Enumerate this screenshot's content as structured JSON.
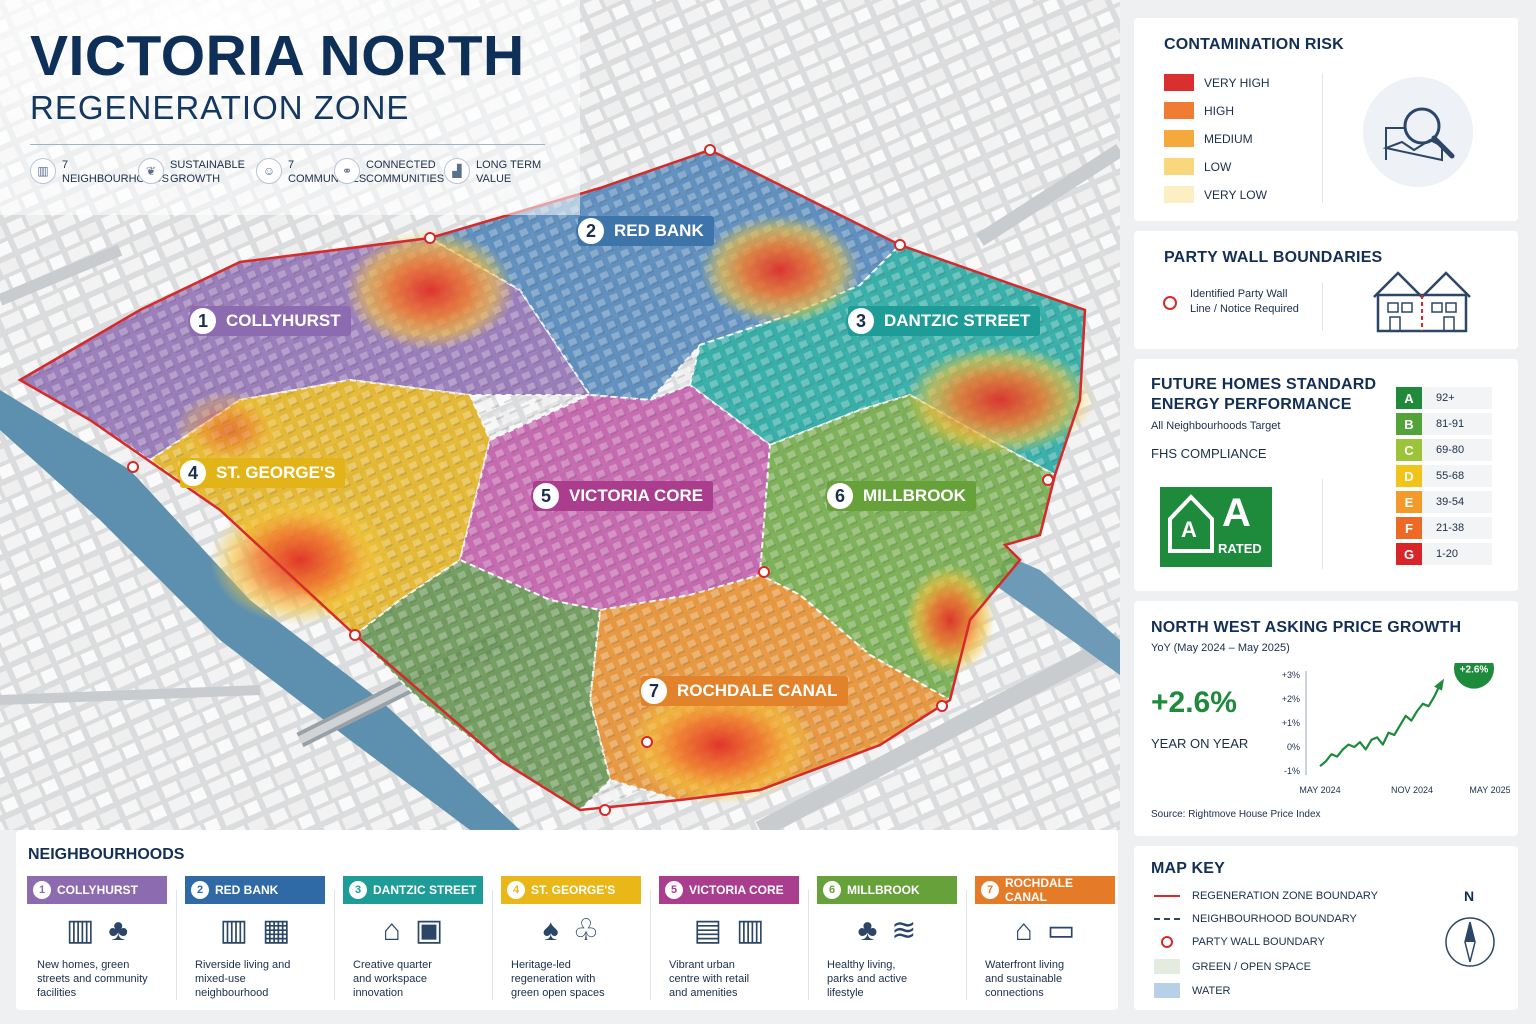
{
  "title": {
    "main": "VICTORIA NORTH",
    "sub": "REGENERATION ZONE"
  },
  "features": [
    {
      "icon": "buildings-icon",
      "line1": "7",
      "line2": "NEIGHBOURHOODS"
    },
    {
      "icon": "leaf-icon",
      "line1": "SUSTAINABLE",
      "line2": "GROWTH"
    },
    {
      "icon": "people-icon",
      "line1": "7",
      "line2": "COMMUNITIES"
    },
    {
      "icon": "network-icon",
      "line1": "CONNECTED",
      "line2": "COMMUNITIES"
    },
    {
      "icon": "growth-chart-icon",
      "line1": "LONG TERM",
      "line2": "VALUE"
    }
  ],
  "neighbourhood_labels": [
    {
      "num": "1",
      "name": "COLLYHURST",
      "color": "#8d6bb0"
    },
    {
      "num": "2",
      "name": "RED BANK",
      "color": "#3d74aa"
    },
    {
      "num": "3",
      "name": "DANTZIC STREET",
      "color": "#1e9c97"
    },
    {
      "num": "4",
      "name": "ST. GEORGE'S",
      "color": "#e3b419"
    },
    {
      "num": "5",
      "name": "VICTORIA CORE",
      "color": "#ab3d8e"
    },
    {
      "num": "6",
      "name": "MILLBROOK",
      "color": "#67a13a"
    },
    {
      "num": "7",
      "name": "ROCHDALE CANAL",
      "color": "#e2832b"
    }
  ],
  "contamination": {
    "title": "CONTAMINATION RISK",
    "levels": [
      {
        "label": "VERY HIGH",
        "color": "#d9302f"
      },
      {
        "label": "HIGH",
        "color": "#f07b32"
      },
      {
        "label": "MEDIUM",
        "color": "#f5a93c"
      },
      {
        "label": "LOW",
        "color": "#f9d77d"
      },
      {
        "label": "VERY LOW",
        "color": "#fcefc4"
      }
    ],
    "icon": "magnifier-terrain-icon"
  },
  "party_wall": {
    "title": "PARTY WALL BOUNDARIES",
    "line1": "Identified Party Wall",
    "line2": "Line / Notice Required",
    "icon": "semi-detached-house-icon"
  },
  "fhs": {
    "title1": "FUTURE HOMES STANDARD",
    "title2": "ENERGY PERFORMANCE",
    "target": "All Neighbourhoods Target",
    "compliance": "FHS COMPLIANCE",
    "badge_small": "A",
    "badge_big": "A",
    "badge_text": "RATED",
    "bands": [
      {
        "letter": "A",
        "range": "92+",
        "color": "#1f8a3a"
      },
      {
        "letter": "B",
        "range": "81-91",
        "color": "#54a33a"
      },
      {
        "letter": "C",
        "range": "69-80",
        "color": "#9cc43a"
      },
      {
        "letter": "D",
        "range": "55-68",
        "color": "#f2c31b"
      },
      {
        "letter": "E",
        "range": "39-54",
        "color": "#f29a2b"
      },
      {
        "letter": "F",
        "range": "21-38",
        "color": "#ec6a26"
      },
      {
        "letter": "G",
        "range": "1-20",
        "color": "#d9252a"
      }
    ]
  },
  "price_growth": {
    "title": "NORTH WEST ASKING PRICE GROWTH",
    "subtitle": "YoY (May 2024 – May 2025)",
    "big_value": "+2.6%",
    "big_label": "YEAR ON YEAR",
    "source": "Source: Rightmove House Price Index",
    "chart_data": {
      "type": "line",
      "x_tick_labels": [
        "MAY 2024",
        "NOV 2024",
        "MAY 2025"
      ],
      "y_tick_labels": [
        "+3%",
        "+2%",
        "+1%",
        "0%",
        "-1%"
      ],
      "ylim": [
        -1,
        3
      ],
      "end_label": "+2.6%",
      "series": [
        {
          "values": [
            -0.8,
            -0.6,
            -0.3,
            -0.4,
            -0.1,
            0.1,
            0.0,
            0.2,
            -0.1,
            0.3,
            0.4,
            0.1,
            0.6,
            0.5,
            0.9,
            1.3,
            1.1,
            1.5,
            1.8,
            1.7,
            2.1,
            2.6
          ]
        }
      ]
    }
  },
  "map_key": {
    "title": "MAP KEY",
    "items": [
      {
        "label": "REGENERATION ZONE BOUNDARY",
        "symbol": "red-solid-line"
      },
      {
        "label": "NEIGHBOURHOOD BOUNDARY",
        "symbol": "dashed-line"
      },
      {
        "label": "PARTY WALL BOUNDARY",
        "symbol": "red-ring"
      },
      {
        "label": "GREEN / OPEN SPACE",
        "symbol": "green-swatch",
        "color": "#e3ecde"
      },
      {
        "label": "WATER",
        "symbol": "water-swatch",
        "color": "#b7d0e6"
      }
    ],
    "north": "N"
  },
  "neighbourhoods_section": {
    "title": "NEIGHBOURHOODS",
    "cards": [
      {
        "num": "1",
        "name": "COLLYHURST",
        "color": "#8d6bb0",
        "desc": [
          "New homes, green",
          "streets and community",
          "facilities"
        ]
      },
      {
        "num": "2",
        "name": "RED BANK",
        "color": "#2f6aa6",
        "desc": [
          "Riverside living and",
          "mixed-use",
          "neighbourhood"
        ]
      },
      {
        "num": "3",
        "name": "DANTZIC STREET",
        "color": "#1e9c97",
        "desc": [
          "Creative quarter",
          "and workspace",
          "innovation"
        ]
      },
      {
        "num": "4",
        "name": "ST. GEORGE'S",
        "color": "#e9b818",
        "desc": [
          "Heritage-led",
          "regeneration with",
          "green open spaces"
        ]
      },
      {
        "num": "5",
        "name": "VICTORIA CORE",
        "color": "#ab3d8e",
        "desc": [
          "Vibrant urban",
          "centre with retail",
          "and amenities"
        ]
      },
      {
        "num": "6",
        "name": "MILLBROOK",
        "color": "#67a13a",
        "desc": [
          "Healthy living,",
          "parks and active",
          "lifestyle"
        ]
      },
      {
        "num": "7",
        "name": "ROCHDALE CANAL",
        "color": "#e57a27",
        "desc": [
          "Waterfront living",
          "and sustainable",
          "connections"
        ]
      }
    ]
  }
}
